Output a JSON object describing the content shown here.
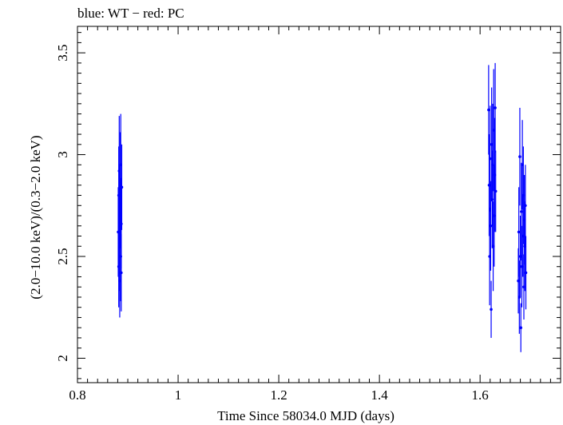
{
  "chart_data": {
    "type": "scatter",
    "title": "blue: WT − red: PC",
    "xlabel": "Time Since 58034.0 MJD (days)",
    "ylabel": "(2.0−10.0 keV)/(0.3−2.0 keV)",
    "xlim": [
      0.8,
      1.76
    ],
    "ylim": [
      1.88,
      3.63
    ],
    "xticks": [
      {
        "value": 0.8,
        "label": "0.8"
      },
      {
        "value": 1.0,
        "label": "1"
      },
      {
        "value": 1.2,
        "label": "1.2"
      },
      {
        "value": 1.4,
        "label": "1.4"
      },
      {
        "value": 1.6,
        "label": "1.6"
      }
    ],
    "yticks": [
      {
        "value": 2.0,
        "label": "2"
      },
      {
        "value": 2.5,
        "label": "2.5"
      },
      {
        "value": 3.0,
        "label": "3"
      },
      {
        "value": 3.5,
        "label": "3.5"
      }
    ],
    "series": [
      {
        "name": "WT",
        "color": "#0000ff",
        "points": [
          [
            0.881,
            2.62,
            0.22
          ],
          [
            0.882,
            2.8,
            0.24
          ],
          [
            0.882,
            2.45,
            0.2
          ],
          [
            0.883,
            2.92,
            0.27
          ],
          [
            0.883,
            2.56,
            0.23
          ],
          [
            0.884,
            2.7,
            0.25
          ],
          [
            0.884,
            2.38,
            0.18
          ],
          [
            0.885,
            2.88,
            0.23
          ],
          [
            0.885,
            2.74,
            0.2
          ],
          [
            0.886,
            2.5,
            0.22
          ],
          [
            0.886,
            2.95,
            0.25
          ],
          [
            0.887,
            2.66,
            0.22
          ],
          [
            0.887,
            2.42,
            0.19
          ],
          [
            0.888,
            2.84,
            0.21
          ],
          [
            1.617,
            3.22,
            0.22
          ],
          [
            1.618,
            2.85,
            0.25
          ],
          [
            1.619,
            2.5,
            0.24
          ],
          [
            1.62,
            2.98,
            0.26
          ],
          [
            1.621,
            2.65,
            0.22
          ],
          [
            1.622,
            2.24,
            0.14
          ],
          [
            1.623,
            3.05,
            0.28
          ],
          [
            1.624,
            2.78,
            0.24
          ],
          [
            1.625,
            2.95,
            0.3
          ],
          [
            1.626,
            2.55,
            0.22
          ],
          [
            1.627,
            3.12,
            0.3
          ],
          [
            1.628,
            2.7,
            0.25
          ],
          [
            1.629,
            2.9,
            0.28
          ],
          [
            1.63,
            3.23,
            0.22
          ],
          [
            1.631,
            2.82,
            0.2
          ],
          [
            1.676,
            2.38,
            0.16
          ],
          [
            1.677,
            2.62,
            0.22
          ],
          [
            1.678,
            2.3,
            0.18
          ],
          [
            1.679,
            2.99,
            0.24
          ],
          [
            1.68,
            2.5,
            0.2
          ],
          [
            1.681,
            2.15,
            0.12
          ],
          [
            1.682,
            2.72,
            0.24
          ],
          [
            1.683,
            2.45,
            0.2
          ],
          [
            1.684,
            2.95,
            0.22
          ],
          [
            1.685,
            2.6,
            0.2
          ],
          [
            1.686,
            2.8,
            0.24
          ],
          [
            1.687,
            2.35,
            0.16
          ],
          [
            1.688,
            2.68,
            0.22
          ],
          [
            1.689,
            2.55,
            0.22
          ],
          [
            1.69,
            2.75,
            0.2
          ],
          [
            1.691,
            2.42,
            0.18
          ]
        ]
      }
    ]
  }
}
